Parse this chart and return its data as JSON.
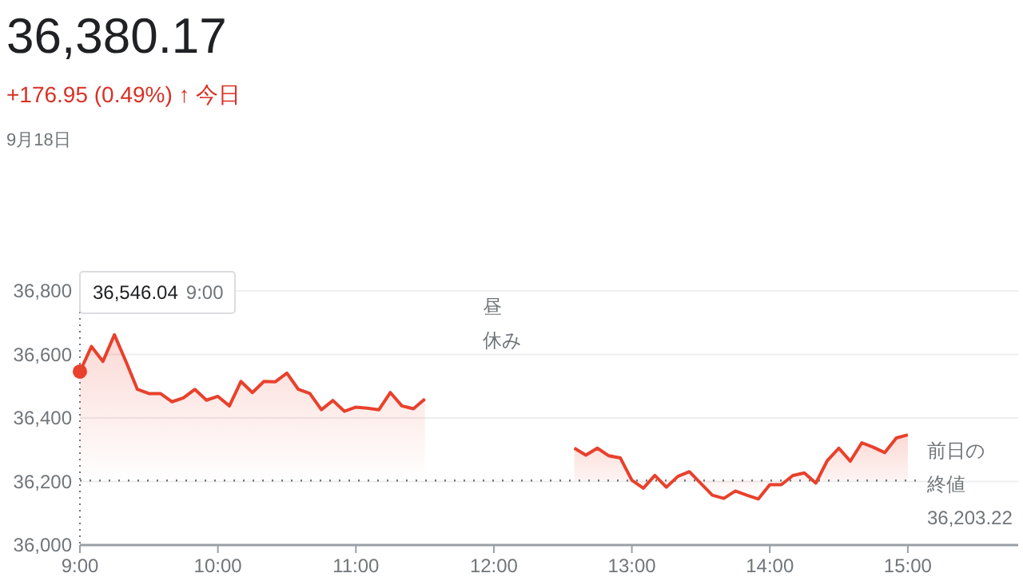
{
  "chart_data": {
    "type": "area",
    "title": "36,380.17",
    "subtitle": "+176.95 (0.49%) ↑ 今日",
    "annotations": [
      "9月18日",
      "昼",
      "休み",
      "36,546.04 9:00",
      "前日の",
      "終値",
      "36,203.22"
    ],
    "series": [
      {
        "color": "#e8412c",
        "x": [
          9,
          9.0833,
          9.1667,
          9.25,
          9.3333,
          9.4167,
          9.5,
          9.5833,
          9.6667,
          9.75,
          9.8333,
          9.9167,
          10,
          10.0833,
          10.1667,
          10.25,
          10.3333,
          10.4167,
          10.5,
          10.5833,
          10.6667,
          10.75,
          10.8333,
          10.9167,
          11,
          11.0833,
          11.1667,
          11.25,
          11.3333,
          11.4167,
          11.5
        ],
        "values": [
          36546,
          36625,
          36578,
          36662,
          36578,
          36490,
          36477,
          36477,
          36451,
          36463,
          36490,
          36456,
          36468,
          36438,
          36515,
          36480,
          36515,
          36514,
          36541,
          36490,
          36477,
          36426,
          36455,
          36421,
          36434,
          36431,
          36426,
          36480,
          36438,
          36429,
          36460
        ]
      },
      {
        "color": "#e8412c",
        "x": [
          12.5833,
          12.6667,
          12.75,
          12.8333,
          12.9167,
          13,
          13.0833,
          13.1667,
          13.25,
          13.3333,
          13.4167,
          13.5,
          13.5833,
          13.6667,
          13.75,
          13.8333,
          13.9167,
          14,
          14.0833,
          14.1667,
          14.25,
          14.3333,
          14.4167,
          14.5,
          14.5833,
          14.6667,
          14.75,
          14.8333,
          14.9167,
          15
        ],
        "values": [
          36305,
          36283,
          36305,
          36281,
          36274,
          36204,
          36179,
          36219,
          36182,
          36216,
          36231,
          36194,
          36157,
          36147,
          36170,
          36157,
          36145,
          36190,
          36190,
          36219,
          36227,
          36195,
          36266,
          36305,
          36264,
          36322,
          36308,
          36291,
          36337,
          36347
        ]
      }
    ],
    "xlim": [
      9,
      15.8
    ],
    "ylim": [
      36000,
      36800
    ],
    "xticks": [
      {
        "value": 9,
        "label": "9:00"
      },
      {
        "value": 10,
        "label": "10:00"
      },
      {
        "value": 11,
        "label": "11:00"
      },
      {
        "value": 12,
        "label": "12:00"
      },
      {
        "value": 13,
        "label": "13:00"
      },
      {
        "value": 14,
        "label": "14:00"
      },
      {
        "value": 15,
        "label": "15:00"
      }
    ],
    "yticks": [
      {
        "value": 36000,
        "label": "36,000"
      },
      {
        "value": 36200,
        "label": "36,200"
      },
      {
        "value": 36400,
        "label": "36,400"
      },
      {
        "value": 36600,
        "label": "36,600"
      },
      {
        "value": 36800,
        "label": "36,800"
      }
    ],
    "grid": "y",
    "ref_lines": [
      {
        "axis": "y",
        "value": 36203.22,
        "color": "#70757a",
        "line_style": "dotted"
      }
    ]
  }
}
